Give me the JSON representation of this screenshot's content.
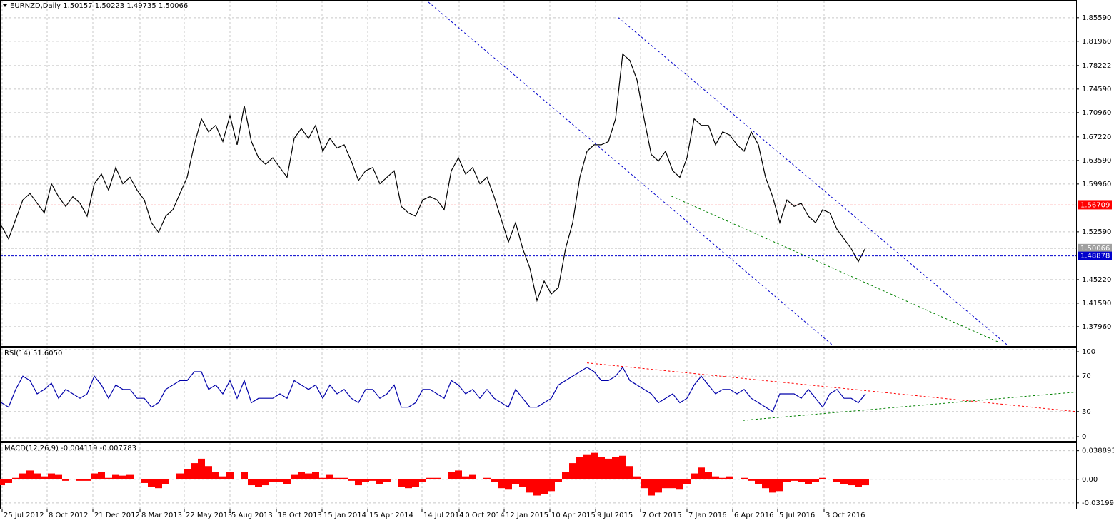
{
  "chart_data": [
    {
      "type": "line",
      "title": "EURNZD,Daily  1.50157 1.50223 1.49735 1.50066",
      "color": "#000000",
      "x": [
        0,
        10,
        20,
        30,
        40,
        50,
        60,
        70,
        80,
        90,
        100,
        110,
        120,
        130,
        140,
        150,
        160,
        170,
        180,
        190,
        200,
        210,
        220,
        230,
        240,
        250,
        260,
        270,
        280,
        290,
        300,
        310,
        320,
        330,
        340,
        350,
        360,
        370,
        380,
        390,
        400,
        410,
        420,
        430,
        440,
        450,
        460,
        470,
        480,
        490,
        500,
        510,
        520,
        530,
        540,
        550,
        560,
        570,
        580,
        590,
        600,
        610,
        620,
        630,
        640,
        650,
        660,
        670,
        680,
        690,
        700,
        710,
        720,
        730,
        740,
        750,
        760,
        770,
        780,
        790,
        800,
        810,
        820,
        830,
        840,
        850,
        860,
        870,
        880,
        890,
        900,
        910,
        920,
        930,
        940,
        950,
        960,
        970,
        980,
        990,
        1000,
        1010,
        1020,
        1030,
        1040,
        1050,
        1060,
        1070,
        1080,
        1090,
        1100,
        1110,
        1120,
        1130,
        1140,
        1150,
        1160,
        1170,
        1180,
        1190,
        1200,
        1210
      ],
      "values": [
        1.535,
        1.515,
        1.545,
        1.575,
        1.585,
        1.57,
        1.555,
        1.6,
        1.58,
        1.565,
        1.58,
        1.57,
        1.55,
        1.6,
        1.615,
        1.59,
        1.625,
        1.6,
        1.61,
        1.59,
        1.575,
        1.54,
        1.525,
        1.55,
        1.56,
        1.585,
        1.61,
        1.66,
        1.7,
        1.68,
        1.69,
        1.665,
        1.705,
        1.66,
        1.72,
        1.665,
        1.64,
        1.63,
        1.64,
        1.625,
        1.61,
        1.67,
        1.685,
        1.67,
        1.69,
        1.65,
        1.67,
        1.655,
        1.66,
        1.635,
        1.605,
        1.62,
        1.625,
        1.6,
        1.61,
        1.62,
        1.565,
        1.555,
        1.55,
        1.575,
        1.58,
        1.575,
        1.56,
        1.62,
        1.64,
        1.615,
        1.625,
        1.6,
        1.61,
        1.58,
        1.545,
        1.51,
        1.54,
        1.5,
        1.47,
        1.42,
        1.45,
        1.43,
        1.44,
        1.5,
        1.54,
        1.61,
        1.65,
        1.66,
        1.66,
        1.665,
        1.7,
        1.8,
        1.79,
        1.76,
        1.7,
        1.645,
        1.635,
        1.65,
        1.62,
        1.61,
        1.64,
        1.7,
        1.69,
        1.69,
        1.66,
        1.68,
        1.675,
        1.66,
        1.65,
        1.68,
        1.66,
        1.61,
        1.58,
        1.54,
        1.575,
        1.565,
        1.57,
        1.55,
        1.54,
        1.56,
        1.555,
        1.53,
        1.515,
        1.5,
        1.48,
        1.501
      ],
      "xlim": [
        0,
        1505
      ],
      "ylim": [
        1.352,
        1.881
      ],
      "yticks": [
        {
          "value": 1.8559,
          "label": "1.85590"
        },
        {
          "value": 1.8196,
          "label": "1.81960"
        },
        1.78222,
        {
          "value": 1.7459,
          "label": "1.74590"
        },
        {
          "value": 1.7096,
          "label": "1.70960"
        },
        {
          "value": 1.6722,
          "label": "1.67220"
        },
        {
          "value": 1.6359,
          "label": "1.63590"
        },
        {
          "value": 1.5996,
          "label": "1.59960"
        },
        {
          "value": 1.5259,
          "label": "1.52590"
        },
        {
          "value": 1.4522,
          "label": "1.45220"
        },
        {
          "value": 1.4159,
          "label": "1.41590"
        },
        {
          "value": 1.3796,
          "label": "1.37960"
        }
      ],
      "grid": true,
      "hlines": [
        {
          "value": 1.56709,
          "color": "#ff0000"
        },
        {
          "value": 1.50066,
          "color": "#a0a0a0"
        },
        {
          "value": 1.48878,
          "color": "#0000cc"
        }
      ],
      "trendlines": [
        {
          "x": [
            598,
            1163
          ],
          "values": [
            1.88,
            1.352
          ],
          "color": "#0000cc"
        },
        {
          "x": [
            864,
            1408
          ],
          "values": [
            1.856,
            1.352
          ],
          "color": "#0000cc"
        },
        {
          "x": [
            938,
            1398
          ],
          "values": [
            1.581,
            1.355
          ],
          "color": "#008000"
        }
      ]
    },
    {
      "type": "line",
      "title": "RSI(14) 51.6050",
      "color": "#0000aa",
      "values": [
        40,
        35,
        55,
        70,
        65,
        50,
        55,
        62,
        45,
        55,
        50,
        45,
        50,
        70,
        60,
        45,
        60,
        55,
        55,
        45,
        45,
        35,
        40,
        55,
        60,
        65,
        65,
        75,
        75,
        55,
        60,
        50,
        65,
        45,
        65,
        40,
        45,
        45,
        45,
        50,
        45,
        65,
        60,
        55,
        60,
        45,
        60,
        50,
        55,
        45,
        40,
        55,
        55,
        45,
        50,
        60,
        35,
        35,
        40,
        55,
        55,
        50,
        45,
        65,
        60,
        50,
        55,
        45,
        55,
        45,
        40,
        35,
        55,
        45,
        35,
        35,
        40,
        45,
        60,
        65,
        70,
        75,
        80,
        75,
        65,
        65,
        70,
        80,
        65,
        60,
        55,
        50,
        40,
        45,
        50,
        40,
        45,
        60,
        70,
        60,
        50,
        55,
        55,
        50,
        55,
        45,
        40,
        35,
        30,
        50,
        50,
        50,
        45,
        55,
        45,
        35,
        50,
        55,
        45,
        45,
        40,
        50
      ],
      "ylim": [
        0,
        100
      ],
      "yticks": [
        100,
        70,
        30,
        0
      ],
      "grid": true,
      "trendlines": [
        {
          "x": [
            820,
            1505
          ],
          "values": [
            85,
            30
          ],
          "color": "#ff0000"
        },
        {
          "x": [
            1038,
            1505
          ],
          "values": [
            20,
            52
          ],
          "color": "#008000"
        }
      ]
    },
    {
      "type": "bar",
      "title": "MACD(12,26,9) -0.004119 -0.007783",
      "color": "#ff0000",
      "values": [
        -0.008,
        -0.005,
        0.002,
        0.008,
        0.012,
        0.008,
        0.004,
        0.008,
        0.006,
        -0.002,
        0.0,
        -0.002,
        -0.002,
        0.008,
        0.01,
        0.002,
        0.006,
        0.005,
        0.006,
        0.0,
        -0.005,
        -0.01,
        -0.012,
        -0.006,
        0.0,
        0.008,
        0.014,
        0.022,
        0.028,
        0.018,
        0.01,
        0.004,
        0.01,
        0.0,
        0.01,
        -0.008,
        -0.01,
        -0.008,
        -0.004,
        -0.004,
        -0.006,
        0.006,
        0.01,
        0.008,
        0.01,
        0.002,
        0.006,
        0.002,
        0.002,
        -0.002,
        -0.008,
        -0.004,
        -0.002,
        -0.006,
        -0.004,
        0.0,
        -0.01,
        -0.012,
        -0.01,
        -0.004,
        0.002,
        0.002,
        0.0,
        0.01,
        0.012,
        0.004,
        0.006,
        0.0,
        0.002,
        -0.004,
        -0.012,
        -0.014,
        -0.006,
        -0.01,
        -0.018,
        -0.022,
        -0.02,
        -0.016,
        -0.004,
        0.01,
        0.022,
        0.03,
        0.034,
        0.036,
        0.03,
        0.028,
        0.03,
        0.032,
        0.018,
        0.004,
        -0.012,
        -0.022,
        -0.018,
        -0.012,
        -0.012,
        -0.014,
        -0.006,
        0.008,
        0.016,
        0.01,
        0.004,
        0.002,
        0.004,
        0.0,
        0.002,
        -0.002,
        -0.006,
        -0.012,
        -0.018,
        -0.016,
        -0.004,
        -0.002,
        -0.004,
        -0.006,
        -0.004,
        0.002,
        0.0,
        -0.004,
        -0.006,
        -0.008,
        -0.01,
        -0.008
      ],
      "ylim": [
        -0.037,
        0.0463
      ],
      "yticks": [
        0.038893,
        {
          "value": 0,
          "label": "0.00"
        },
        -0.031995
      ],
      "grid": true,
      "xticks": [
        {
          "value": 1,
          "label": "25 Jul 2012"
        },
        {
          "value": 64,
          "label": "8 Oct 2012"
        },
        {
          "value": 128,
          "label": "21 Dec 2012"
        },
        {
          "value": 194,
          "label": "8 Mar 2013"
        },
        {
          "value": 256,
          "label": "22 May 2013"
        },
        {
          "value": 320,
          "label": "5 Aug 2013"
        },
        {
          "value": 385,
          "label": "18 Oct 2013"
        },
        {
          "value": 449,
          "label": "15 Jan 2014"
        },
        {
          "value": 513,
          "label": "15 Apr 2014"
        },
        {
          "value": 589,
          "label": "14 Jul 2014"
        },
        {
          "value": 641,
          "label": "10 Oct 2014"
        },
        {
          "value": 704,
          "label": "12 Jan 2015"
        },
        {
          "value": 768,
          "label": "10 Apr 2015"
        },
        {
          "value": 832,
          "label": "9 Jul 2015"
        },
        {
          "value": 895,
          "label": "7 Oct 2015"
        },
        {
          "value": 960,
          "label": "7 Jan 2016"
        },
        {
          "value": 1024,
          "label": "6 Apr 2016"
        },
        {
          "value": 1087,
          "label": "5 Jul 2016"
        },
        {
          "value": 1152,
          "label": "3 Oct 2016"
        }
      ]
    }
  ]
}
